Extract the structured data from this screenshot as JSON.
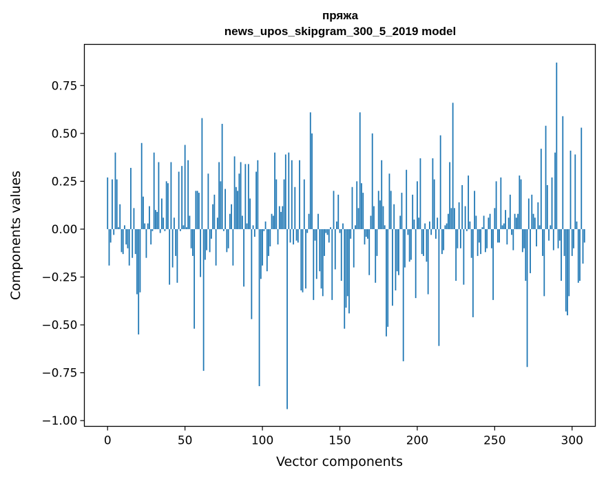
{
  "chart_data": {
    "type": "bar",
    "title": "пряжа",
    "subtitle": "news_upos_skipgram_300_5_2019 model",
    "xlabel": "Vector components",
    "ylabel": "Components values",
    "xlim": [
      -15,
      315
    ],
    "ylim": [
      -1.03,
      0.965
    ],
    "xticks": [
      0,
      50,
      100,
      150,
      200,
      250,
      300
    ],
    "xtick_labels": [
      "0",
      "50",
      "100",
      "150",
      "200",
      "250",
      "300"
    ],
    "yticks": [
      -1.0,
      -0.75,
      -0.5,
      -0.25,
      0.0,
      0.25,
      0.5,
      0.75
    ],
    "ytick_labels": [
      "−1.00",
      "−0.75",
      "−0.50",
      "−0.25",
      "0.00",
      "0.25",
      "0.50",
      "0.75"
    ],
    "bar_color": "#1f77b4",
    "grid": false,
    "values": [
      0.27,
      -0.19,
      -0.07,
      0.26,
      -0.03,
      0.4,
      0.26,
      0.01,
      0.13,
      -0.12,
      -0.13,
      0.02,
      -0.08,
      -0.1,
      -0.19,
      0.32,
      -0.15,
      0.11,
      -0.13,
      -0.34,
      -0.55,
      -0.33,
      0.45,
      0.17,
      0.03,
      -0.15,
      0.03,
      0.12,
      -0.08,
      -0.01,
      0.4,
      0.1,
      0.09,
      0.35,
      -0.02,
      0.16,
      0.06,
      -0.01,
      0.25,
      0.24,
      -0.29,
      0.35,
      -0.2,
      0.06,
      -0.14,
      -0.28,
      0.3,
      -0.01,
      0.33,
      0.02,
      0.44,
      0.01,
      0.36,
      0.07,
      -0.1,
      -0.14,
      -0.52,
      0.2,
      0.2,
      0.19,
      -0.25,
      0.58,
      -0.74,
      -0.16,
      -0.11,
      0.29,
      -0.12,
      -0.05,
      0.13,
      0.18,
      -0.19,
      0.06,
      0.35,
      0.25,
      0.55,
      -0.01,
      0.21,
      -0.12,
      -0.1,
      0.08,
      0.13,
      -0.19,
      0.38,
      0.22,
      0.2,
      0.29,
      0.35,
      0.07,
      -0.3,
      0.34,
      0.03,
      0.34,
      0.16,
      -0.47,
      0.02,
      -0.04,
      0.3,
      0.36,
      -0.82,
      -0.26,
      -0.19,
      -0.01,
      0.04,
      -0.22,
      -0.14,
      -0.09,
      0.08,
      0.07,
      0.4,
      0.26,
      -0.08,
      0.12,
      0.09,
      0.12,
      0.26,
      0.39,
      -0.94,
      0.4,
      -0.07,
      0.36,
      -0.08,
      0.22,
      -0.06,
      -0.07,
      0.36,
      -0.32,
      -0.33,
      0.26,
      -0.31,
      -0.02,
      0.08,
      0.61,
      0.5,
      -0.37,
      -0.06,
      -0.26,
      0.08,
      -0.22,
      -0.31,
      -0.35,
      -0.14,
      -0.02,
      -0.03,
      -0.07,
      0.01,
      -0.37,
      0.2,
      -0.21,
      0.04,
      0.18,
      -0.02,
      -0.27,
      0.03,
      -0.52,
      -0.41,
      -0.35,
      -0.44,
      -0.05,
      0.22,
      -0.2,
      0.02,
      0.25,
      0.11,
      0.61,
      0.24,
      0.19,
      -0.08,
      -0.04,
      -0.05,
      -0.24,
      0.07,
      0.5,
      0.12,
      -0.28,
      -0.14,
      0.2,
      0.15,
      0.36,
      0.12,
      0.02,
      -0.56,
      -0.51,
      0.29,
      0.2,
      -0.4,
      0.13,
      -0.32,
      -0.22,
      -0.24,
      0.07,
      0.19,
      -0.69,
      -0.2,
      0.31,
      -0.03,
      -0.17,
      -0.16,
      0.18,
      0.05,
      -0.36,
      0.25,
      0.06,
      0.37,
      -0.13,
      -0.14,
      0.03,
      -0.17,
      -0.34,
      0.04,
      -0.03,
      0.37,
      0.26,
      -0.05,
      0.06,
      -0.61,
      0.49,
      -0.13,
      -0.11,
      0.02,
      0.03,
      0.08,
      0.35,
      0.11,
      0.66,
      0.11,
      -0.27,
      -0.1,
      0.14,
      -0.1,
      0.23,
      -0.29,
      0.12,
      -0.01,
      0.28,
      0.04,
      -0.15,
      -0.46,
      0.2,
      0.07,
      -0.14,
      -0.07,
      -0.13,
      0.01,
      0.07,
      -0.12,
      -0.1,
      0.06,
      0.08,
      -0.1,
      -0.37,
      0.11,
      0.25,
      -0.07,
      -0.07,
      0.27,
      0.02,
      0.03,
      0.1,
      -0.08,
      0.06,
      0.18,
      -0.03,
      -0.11,
      0.08,
      0.06,
      0.08,
      0.28,
      0.26,
      -0.12,
      -0.1,
      -0.27,
      -0.72,
      0.16,
      -0.23,
      0.18,
      0.08,
      0.06,
      -0.09,
      0.14,
      0.02,
      0.42,
      -0.14,
      -0.35,
      0.54,
      0.23,
      -0.06,
      0.02,
      0.27,
      -0.11,
      0.4,
      0.87,
      -0.1,
      -0.06,
      -0.27,
      0.59,
      -0.14,
      -0.43,
      -0.45,
      -0.35,
      0.41,
      -0.14,
      -0.1,
      0.39,
      0.04,
      -0.28,
      -0.27,
      0.53,
      -0.18,
      -0.07
    ]
  }
}
